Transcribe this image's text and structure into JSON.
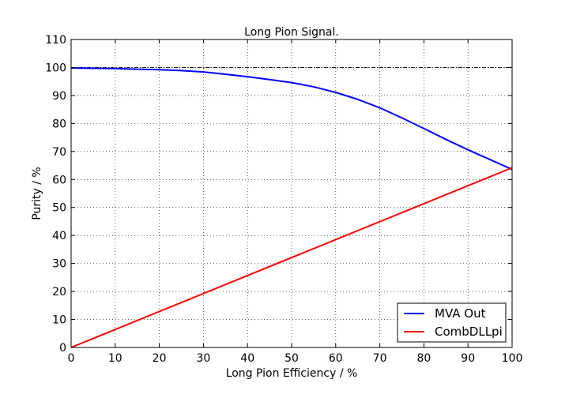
{
  "chart_data": {
    "type": "line",
    "title": "Long Pion Signal.",
    "xlabel": "Long Pion Efficiency / %",
    "ylabel": "Purity / %",
    "xlim": [
      0,
      100
    ],
    "ylim": [
      0,
      110
    ],
    "xticks": [
      0,
      10,
      20,
      30,
      40,
      50,
      60,
      70,
      80,
      90,
      100
    ],
    "yticks": [
      0,
      10,
      20,
      30,
      40,
      50,
      60,
      70,
      80,
      90,
      100,
      110
    ],
    "grid": true,
    "legend_position": "lower-right",
    "reference_line": {
      "y": 100,
      "style": "dash-dot",
      "color": "#000000"
    },
    "series": [
      {
        "name": "MVA Out",
        "color": "#0000ff",
        "x": [
          0,
          5,
          10,
          15,
          20,
          25,
          30,
          35,
          40,
          45,
          50,
          55,
          60,
          65,
          70,
          75,
          80,
          85,
          90,
          95,
          100
        ],
        "y": [
          99.8,
          99.7,
          99.6,
          99.4,
          99.2,
          98.9,
          98.4,
          97.6,
          96.7,
          95.7,
          94.6,
          93.1,
          91.1,
          88.6,
          85.6,
          82.0,
          78.2,
          74.3,
          70.6,
          67.1,
          63.6
        ]
      },
      {
        "name": "CombDLLpi",
        "color": "#ff0000",
        "x": [
          0,
          100
        ],
        "y": [
          0,
          64.2
        ]
      }
    ]
  }
}
